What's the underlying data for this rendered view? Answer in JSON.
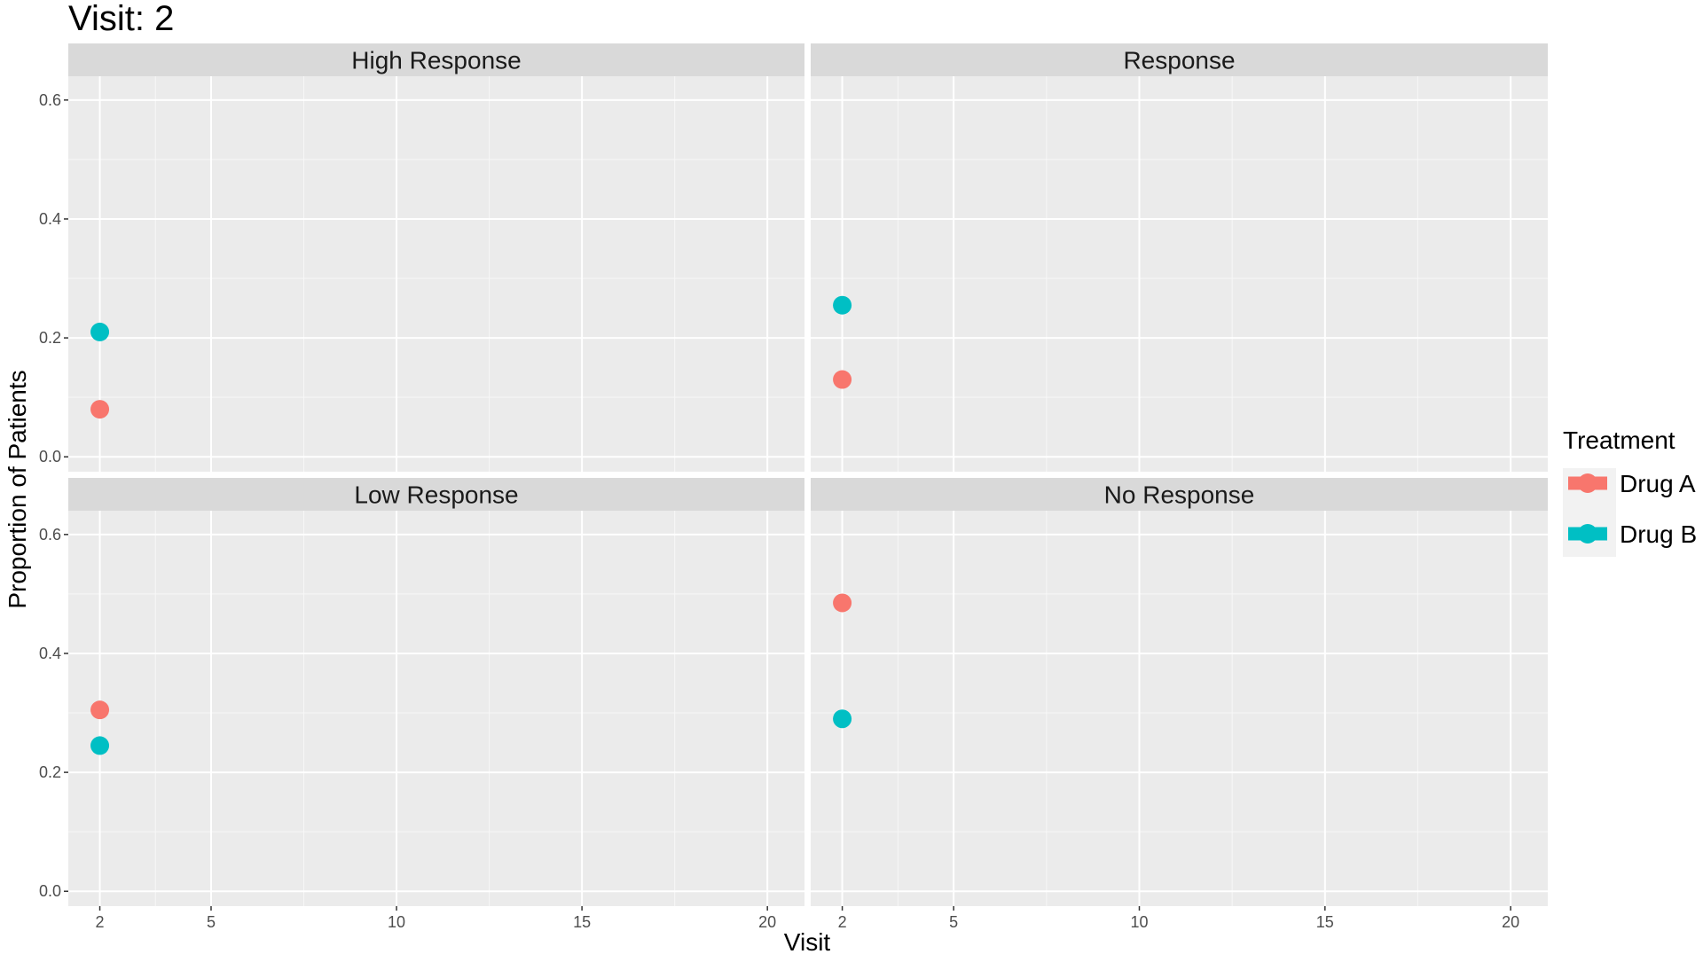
{
  "chart_data": {
    "type": "scatter",
    "title": "Visit: 2",
    "xlabel": "Visit",
    "ylabel": "Proportion of Patients",
    "xlim": [
      1.15,
      21.0
    ],
    "ylim": [
      -0.025,
      0.64
    ],
    "x_ticks": [
      2,
      5,
      10,
      15,
      20
    ],
    "y_ticks": [
      0.0,
      0.2,
      0.4,
      0.6
    ],
    "y_tick_labels": [
      "0.0",
      "0.2",
      "0.4",
      "0.6"
    ],
    "grid": true,
    "legend": {
      "title": "Treatment",
      "position": "right",
      "items": [
        {
          "label": "Drug A",
          "color": "#F8766D"
        },
        {
          "label": "Drug B",
          "color": "#00BFC4"
        }
      ]
    },
    "facets": [
      {
        "name": "High Response",
        "series": [
          {
            "name": "Drug A",
            "color": "#F8766D",
            "points": [
              {
                "x": 2,
                "y": 0.08
              }
            ]
          },
          {
            "name": "Drug B",
            "color": "#00BFC4",
            "points": [
              {
                "x": 2,
                "y": 0.21
              }
            ]
          }
        ]
      },
      {
        "name": "Response",
        "series": [
          {
            "name": "Drug A",
            "color": "#F8766D",
            "points": [
              {
                "x": 2,
                "y": 0.13
              }
            ]
          },
          {
            "name": "Drug B",
            "color": "#00BFC4",
            "points": [
              {
                "x": 2,
                "y": 0.255
              }
            ]
          }
        ]
      },
      {
        "name": "Low Response",
        "series": [
          {
            "name": "Drug A",
            "color": "#F8766D",
            "points": [
              {
                "x": 2,
                "y": 0.305
              }
            ]
          },
          {
            "name": "Drug B",
            "color": "#00BFC4",
            "points": [
              {
                "x": 2,
                "y": 0.245
              }
            ]
          }
        ]
      },
      {
        "name": "No Response",
        "series": [
          {
            "name": "Drug A",
            "color": "#F8766D",
            "points": [
              {
                "x": 2,
                "y": 0.485
              }
            ]
          },
          {
            "name": "Drug B",
            "color": "#00BFC4",
            "points": [
              {
                "x": 2,
                "y": 0.29
              }
            ]
          }
        ]
      }
    ]
  }
}
